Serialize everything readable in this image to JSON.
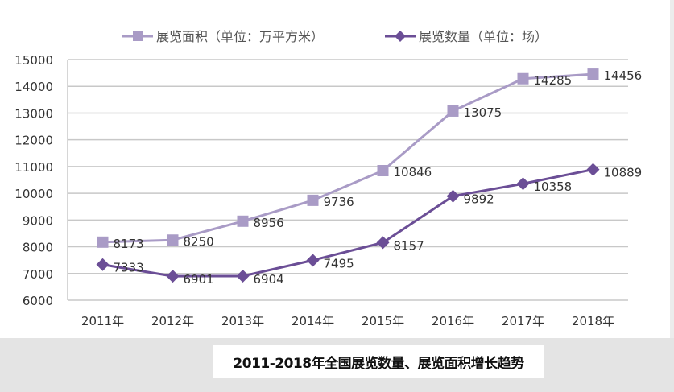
{
  "chart_data": {
    "type": "line",
    "title": "2011-2018年全国展览数量、展览面积增长趋势",
    "xlabel": "",
    "ylabel": "",
    "categories": [
      "2011年",
      "2012年",
      "2013年",
      "2014年",
      "2015年",
      "2016年",
      "2017年",
      "2018年"
    ],
    "ylim": [
      6000,
      15000
    ],
    "yticks": [
      15000,
      14000,
      13000,
      12000,
      11000,
      10000,
      9000,
      8000,
      7000,
      6000
    ],
    "grid": true,
    "legend_position": "top",
    "series": [
      {
        "name": "展览面积（单位：万平方米）",
        "marker": "square",
        "color": "#a99bc6",
        "values": [
          8173,
          8250,
          8956,
          9736,
          10846,
          13075,
          14285,
          14456
        ]
      },
      {
        "name": "展览数量（单位：场）",
        "marker": "diamond",
        "color": "#6b4e96",
        "values": [
          7333,
          6901,
          6904,
          7495,
          8157,
          9892,
          10358,
          10889
        ]
      }
    ]
  },
  "caption": "2011-2018年全国展览数量、展览面积增长趋势"
}
